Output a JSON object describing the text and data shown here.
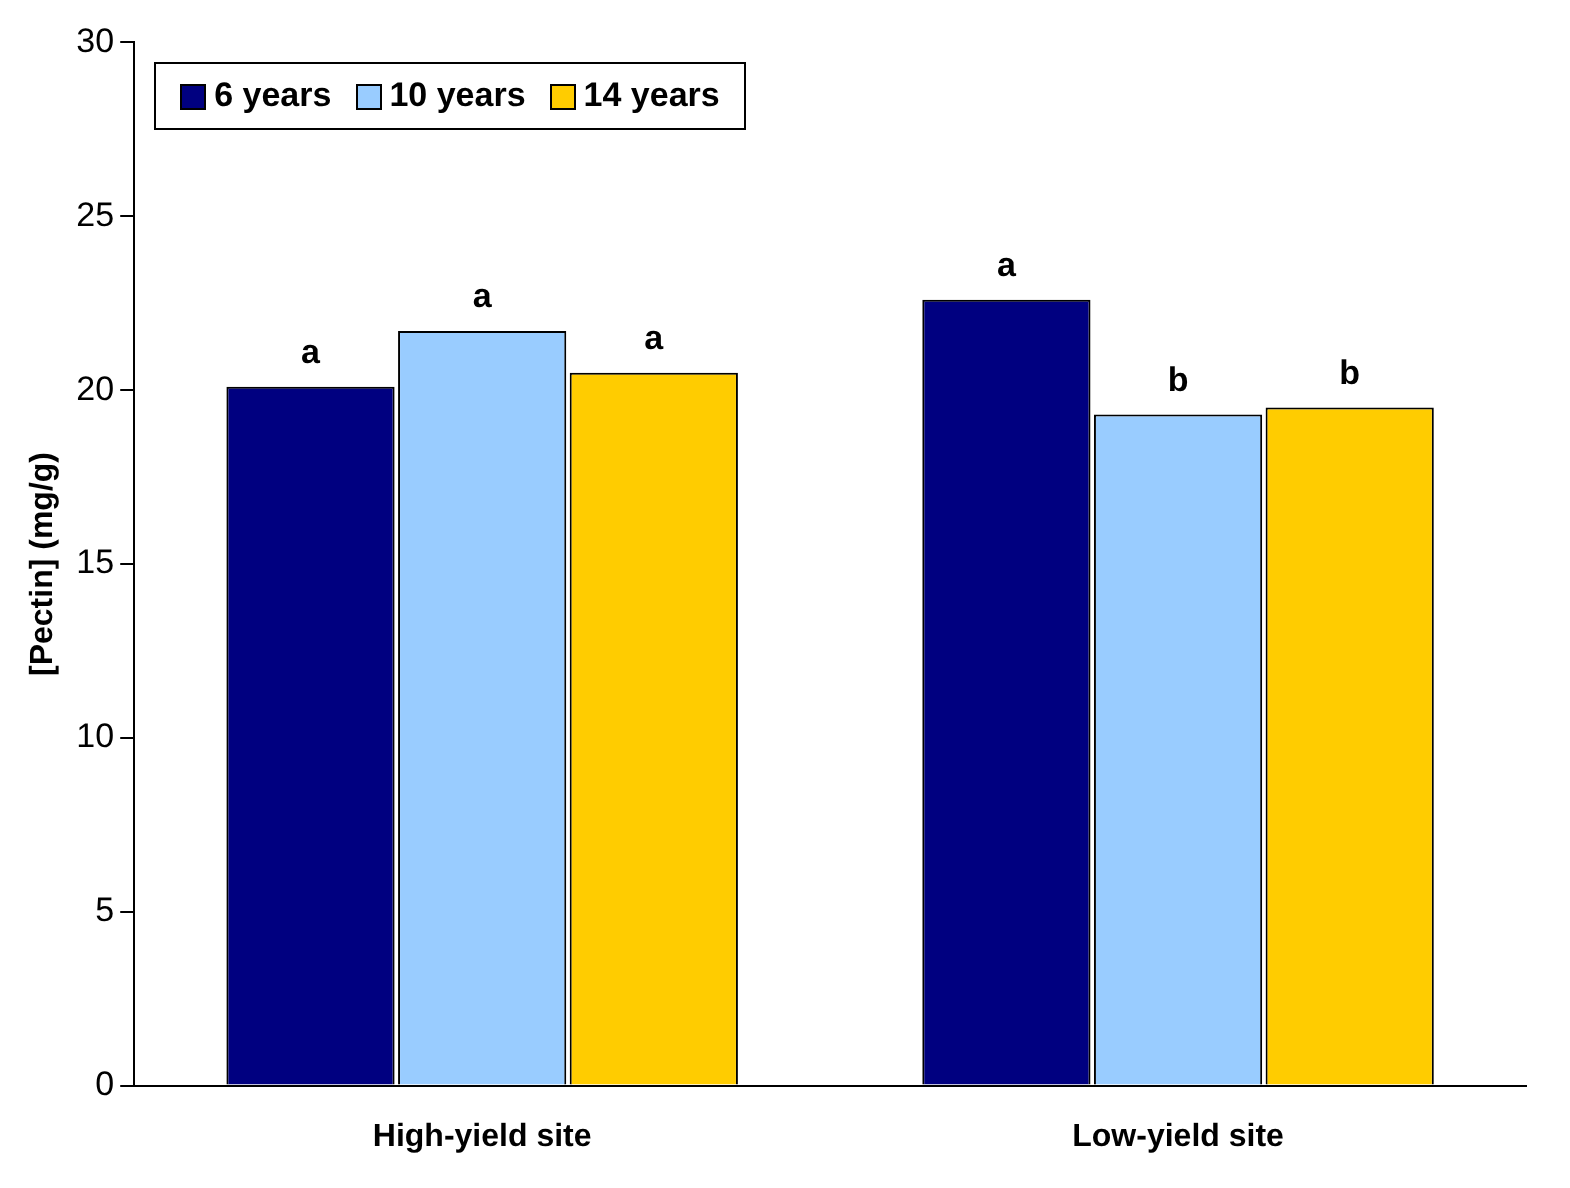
{
  "chart_data": {
    "type": "bar",
    "ylabel": "[Pectin] (mg/g)",
    "categories": [
      "High-yield site",
      "Low-yield site"
    ],
    "series": [
      {
        "name": "6 years",
        "color": "#000080",
        "values": [
          20.1,
          22.6
        ]
      },
      {
        "name": "10 years",
        "color": "#99ccff",
        "values": [
          21.7,
          19.3
        ]
      },
      {
        "name": "14 years",
        "color": "#ffcc00",
        "values": [
          20.5,
          19.5
        ]
      }
    ],
    "ylim": [
      0,
      30
    ],
    "yticks": [
      0,
      5,
      10,
      15,
      20,
      25,
      30
    ],
    "grid": false,
    "legend": "top left",
    "annotations": [
      "a",
      "a",
      "a",
      "a",
      "b",
      "b"
    ]
  }
}
